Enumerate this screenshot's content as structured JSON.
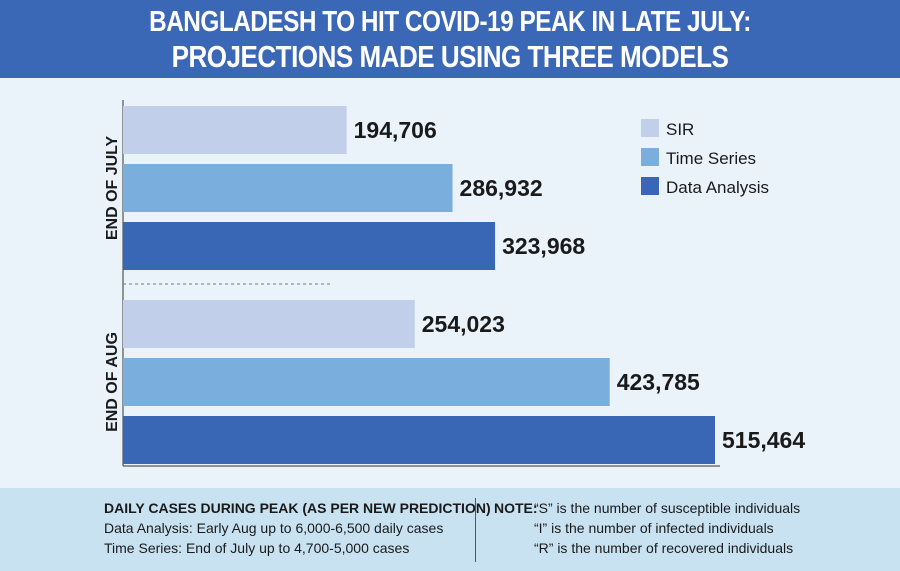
{
  "header": {
    "line1": "BANGLADESH TO HIT COVID-19 PEAK IN LATE JULY:",
    "line2": "PROJECTIONS MADE USING THREE MODELS"
  },
  "chart_data": {
    "type": "bar",
    "orientation": "horizontal",
    "categories": [
      "END OF JULY",
      "END OF AUG"
    ],
    "series": [
      {
        "name": "SIR",
        "values": [
          194706,
          254023
        ],
        "labels": [
          "194,706",
          "254,023"
        ],
        "color": "#c2cfeb"
      },
      {
        "name": "Time Series",
        "values": [
          286932,
          423785
        ],
        "labels": [
          "286,932",
          "423,785"
        ],
        "color": "#7aaedd"
      },
      {
        "name": "Data Analysis",
        "values": [
          323968,
          515464
        ],
        "labels": [
          "323,968",
          "515,464"
        ],
        "color": "#3a66b6"
      }
    ],
    "legend_position": "top-right",
    "grid": false
  },
  "footer": {
    "left_title": "DAILY CASES DURING PEAK (AS PER NEW PREDICTION)",
    "left_line1": "Data Analysis: Early Aug up to 6,000-6,500 daily cases",
    "left_line2": "Time Series: End of July up to 4,700-5,000 cases",
    "note_label": "NOTE:",
    "note_line1": "“S” is the number of susceptible individuals",
    "note_line2": "“I” is the number of infected individuals",
    "note_line3": "“R” is the number of recovered individuals"
  }
}
